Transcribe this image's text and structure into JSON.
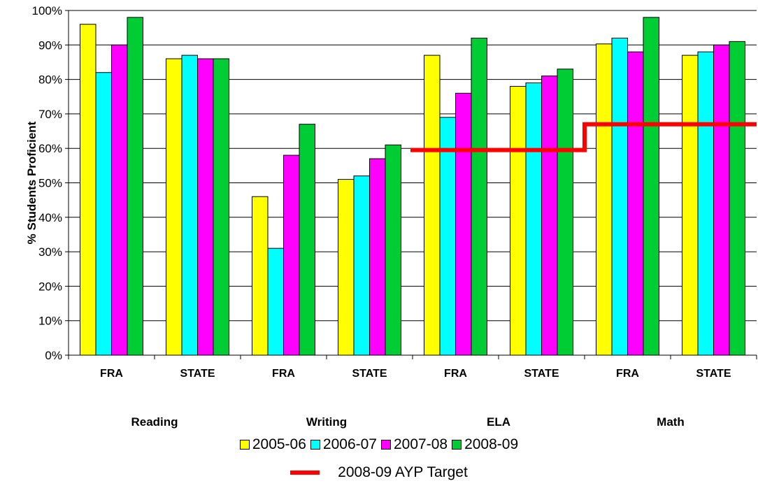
{
  "chart_data": {
    "type": "bar",
    "ylabel": "% Students Proficient",
    "ylim": [
      0,
      100
    ],
    "yticks": [
      "0%",
      "10%",
      "20%",
      "30%",
      "40%",
      "50%",
      "60%",
      "70%",
      "80%",
      "90%",
      "100%"
    ],
    "grid": true,
    "categories": [
      "FRA",
      "STATE",
      "FRA",
      "STATE",
      "FRA",
      "STATE",
      "FRA",
      "STATE"
    ],
    "groups": [
      "Reading",
      "Writing",
      "ELA",
      "Math"
    ],
    "series": [
      {
        "name": "2005-06",
        "color": "#ffff00",
        "values": [
          96,
          86,
          46,
          51,
          87,
          78,
          90.3,
          87
        ]
      },
      {
        "name": "2006-07",
        "color": "#00ffff",
        "values": [
          82,
          87,
          31,
          52,
          69,
          79,
          92,
          88
        ]
      },
      {
        "name": "2007-08",
        "color": "#ff00ff",
        "values": [
          90,
          86,
          58,
          57,
          76,
          81,
          88,
          90
        ]
      },
      {
        "name": "2008-09",
        "color": "#00cc33",
        "values": [
          98,
          86,
          67,
          61,
          92,
          83,
          98,
          91
        ]
      }
    ],
    "target": {
      "name": "2008-09 AYP Target",
      "color": "#ff0000",
      "segments": [
        {
          "group": "ELA",
          "value": 59.5
        },
        {
          "group": "Math",
          "value": 67
        }
      ]
    },
    "legend_placement": "bottom"
  }
}
